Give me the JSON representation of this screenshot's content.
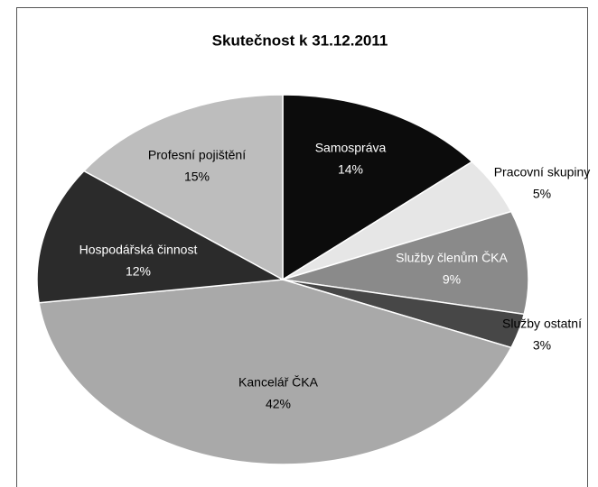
{
  "chart_data": {
    "type": "pie",
    "title": "Skutečnost k 31.12.2011",
    "categories": [
      "Samospráva",
      "Pracovní skupiny",
      "Služby členům ČKA",
      "Služby ostatní",
      "Kancelář ČKA",
      "Hospodářská činnost",
      "Profesní pojištění"
    ],
    "values": [
      14,
      5,
      9,
      3,
      42,
      12,
      15
    ],
    "value_labels": [
      "14%",
      "5%",
      "9%",
      "3%",
      "42%",
      "12%",
      "15%"
    ],
    "colors": [
      "#0c0c0c",
      "#e6e6e6",
      "#8a8a8a",
      "#474747",
      "#a9a9a9",
      "#2b2b2b",
      "#bdbdbd"
    ],
    "label_colors": [
      "#ffffff",
      "#000000",
      "#ffffff",
      "#000000",
      "#000000",
      "#ffffff",
      "#000000"
    ]
  }
}
